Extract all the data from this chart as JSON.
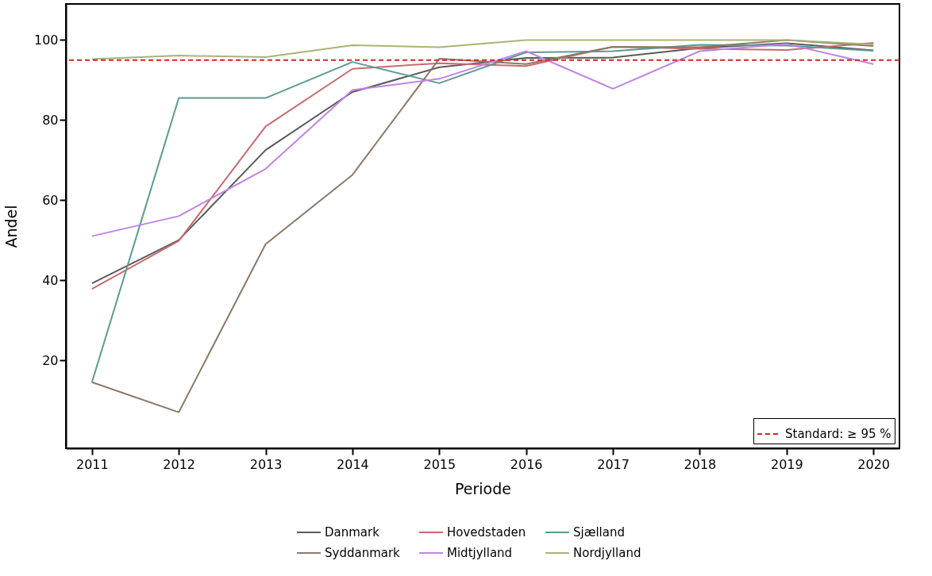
{
  "chart_data": {
    "type": "line",
    "xlabel": "Periode",
    "ylabel": "Andel",
    "x": [
      2011,
      2012,
      2013,
      2014,
      2015,
      2016,
      2017,
      2018,
      2019,
      2020
    ],
    "xlim": [
      2010.7,
      2020.3
    ],
    "xticks": [
      2011,
      2012,
      2013,
      2014,
      2015,
      2016,
      2017,
      2018,
      2019,
      2020
    ],
    "ylim": [
      -2,
      109
    ],
    "yticks": [
      20,
      40,
      60,
      80,
      100
    ],
    "series": [
      {
        "name": "Danmark",
        "color": "#5a5a5a",
        "values": [
          39.2,
          50,
          72.5,
          87,
          93.2,
          95.5,
          95.6,
          98,
          99.2,
          97.4
        ]
      },
      {
        "name": "Hovedstaden",
        "color": "#c96a6f",
        "values": [
          37.8,
          49.8,
          78.4,
          92.8,
          94.2,
          93.5,
          98.3,
          97.8,
          97.5,
          99.3
        ]
      },
      {
        "name": "Sjælland",
        "color": "#5b9a92",
        "values": [
          14.5,
          85.5,
          85.5,
          94.5,
          89.2,
          96.9,
          97.2,
          98.8,
          98.6,
          97.3
        ]
      },
      {
        "name": "Syddanmark",
        "color": "#8b7a67",
        "values": [
          14.5,
          7,
          49,
          66.3,
          95.3,
          94,
          98.3,
          98.2,
          100,
          98.5
        ]
      },
      {
        "name": "Midtjylland",
        "color": "#c084e8",
        "values": [
          51,
          56,
          67.8,
          87.5,
          90.3,
          97.2,
          87.8,
          97.2,
          99,
          94
        ]
      },
      {
        "name": "Nordjylland",
        "color": "#aab378",
        "values": [
          95.2,
          96.1,
          95.7,
          98.7,
          98.2,
          100,
          100,
          100,
          100,
          98.9
        ]
      }
    ],
    "ref_lines": [
      {
        "axis": "y",
        "value": 95,
        "label": "Standard: ≥ 95 %",
        "color": "#e02020",
        "line_style": "dashed"
      }
    ],
    "legend": "bottom",
    "grid": false,
    "line_style": "solid",
    "marker": "none"
  }
}
